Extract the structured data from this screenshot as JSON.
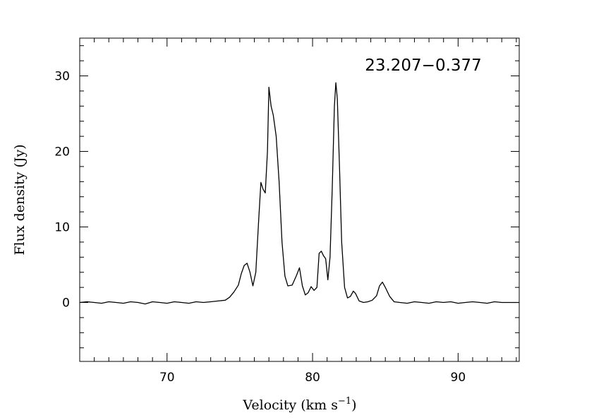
{
  "chart_data": {
    "type": "line",
    "title": "23.207−0.377",
    "xlabel": "Velocity (km s",
    "xlabel_sup": "−1",
    "xlabel_close": ")",
    "ylabel": "Flux density (Jy)",
    "xlim": [
      64.0,
      94.2
    ],
    "ylim": [
      -7.8,
      35.0
    ],
    "x_ticks": [
      70,
      80,
      90
    ],
    "y_ticks": [
      0,
      10,
      20,
      30
    ],
    "x_minor_step": 1,
    "y_minor_step": 2,
    "grid": false,
    "legend": "none",
    "series": [
      {
        "color": "#000000",
        "x": [
          64.0,
          64.5,
          65.0,
          65.5,
          66.0,
          66.5,
          67.0,
          67.5,
          68.0,
          68.5,
          69.0,
          69.5,
          70.0,
          70.5,
          71.0,
          71.5,
          72.0,
          72.5,
          73.0,
          73.5,
          74.0,
          74.3,
          74.6,
          74.9,
          75.1,
          75.3,
          75.5,
          75.7,
          75.9,
          76.1,
          76.3,
          76.45,
          76.6,
          76.75,
          76.9,
          77.0,
          77.15,
          77.3,
          77.5,
          77.7,
          77.9,
          78.1,
          78.3,
          78.6,
          78.9,
          79.1,
          79.3,
          79.5,
          79.7,
          79.9,
          80.1,
          80.3,
          80.45,
          80.6,
          80.75,
          80.9,
          81.05,
          81.2,
          81.35,
          81.5,
          81.6,
          81.7,
          81.85,
          82.0,
          82.2,
          82.4,
          82.6,
          82.8,
          82.95,
          83.2,
          83.5,
          83.8,
          84.1,
          84.4,
          84.6,
          84.8,
          85.0,
          85.3,
          85.6,
          86.0,
          86.5,
          87.0,
          87.5,
          88.0,
          88.5,
          89.0,
          89.5,
          90.0,
          90.5,
          91.0,
          91.5,
          92.0,
          92.5,
          93.0,
          93.5,
          94.2
        ],
        "y": [
          0.0,
          0.1,
          0.0,
          -0.1,
          0.1,
          0.0,
          -0.1,
          0.1,
          0.0,
          -0.2,
          0.1,
          0.0,
          -0.1,
          0.1,
          0.0,
          -0.1,
          0.1,
          0.0,
          0.1,
          0.2,
          0.3,
          0.7,
          1.4,
          2.3,
          3.8,
          4.9,
          5.2,
          4.0,
          2.2,
          4.0,
          11.0,
          15.9,
          15.0,
          14.5,
          20.0,
          28.5,
          26.0,
          24.8,
          22.0,
          16.0,
          8.0,
          3.5,
          2.2,
          2.3,
          3.6,
          4.6,
          2.2,
          1.0,
          1.3,
          2.1,
          1.6,
          2.0,
          6.5,
          6.8,
          6.2,
          5.8,
          3.0,
          6.0,
          15.0,
          26.0,
          29.1,
          27.0,
          18.0,
          8.0,
          2.0,
          0.6,
          0.8,
          1.5,
          1.2,
          0.2,
          0.0,
          0.1,
          0.3,
          0.9,
          2.2,
          2.7,
          2.0,
          0.8,
          0.1,
          0.0,
          -0.1,
          0.1,
          0.0,
          -0.1,
          0.1,
          0.0,
          0.1,
          -0.1,
          0.0,
          0.1,
          0.0,
          -0.1,
          0.1,
          0.0,
          0.0,
          0.0
        ]
      }
    ]
  }
}
